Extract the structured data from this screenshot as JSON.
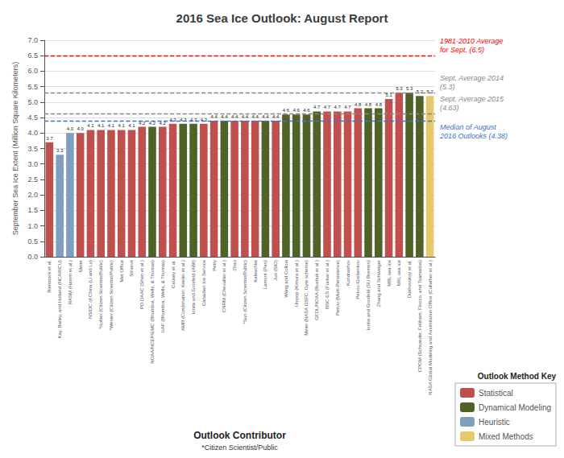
{
  "chart_data": {
    "type": "bar",
    "title": "2016 Sea Ice Outlook: August Report",
    "xlabel": "Outlook Contributor",
    "xlabel_sub": "*Citizen Scientist/Public",
    "ylabel": "September Sea Ice Extent (Million Square Kilometers)",
    "categories": [
      "Bienstock et al.",
      "Kay, Bailey, and Holland (NCAR/CU)",
      "RASM (Hamm et al.)",
      "Meier",
      "NSIDC of China (Li and Lu)",
      "*Holtier (Citizen Scientist/Public)",
      "*Wester (Citizen Scientist/Public)",
      "Met Office",
      "Stroeve",
      "PO.DAAC (Shen et al.)",
      "NOAA/NCEP/EMC (Bhumbra, Wells, & Thomas)",
      "UAF (Bhumbra, Wells, & Thomas)",
      "Causey et al.",
      "AMR (Combination: Keeler et al.)",
      "Ionita and Grosfeld (AWI)",
      "Canadian Ice Service",
      "Petty",
      "CNRM (Chevallier et al.)",
      "Zhao",
      "*Sun (Citizen Scientist/Public)",
      "Kaleschke",
      "Lamont (Pan)",
      "Jun (SIO)",
      "Wang and Collow",
      "Unipop (Kimura et al.)",
      "Meier (NASA GSFC, Gyte scheme)",
      "GFDL/NOAA (Bushuk et al.)",
      "BSC-ES (Fuckar et al.)",
      "Petrov (Multi-Persistence)",
      "Kondrashov",
      "Petrov-Grebenkov",
      "Ionita and Grosfeld (SU Bremen)",
      "Zhang and Schweiger",
      "MBL sea ice",
      "NRL sea ice",
      "Dukhovskoy et al.",
      "CPOM (Schroeder, Feltham, Flocco, and Tsamados)",
      "NASA Global Modeling and Assimilation Office (Cullather et al.)"
    ],
    "values": [
      3.7,
      3.3,
      4.0,
      4.0,
      4.1,
      4.1,
      4.1,
      4.1,
      4.1,
      4.2,
      4.2,
      4.2,
      4.3,
      4.3,
      4.3,
      4.3,
      4.4,
      4.4,
      4.4,
      4.4,
      4.4,
      4.4,
      4.4,
      4.6,
      4.6,
      4.6,
      4.7,
      4.7,
      4.7,
      4.7,
      4.8,
      4.8,
      4.8,
      5.1,
      5.3,
      5.3,
      5.2,
      5.2
    ],
    "value_labels": [
      "3.7",
      "3.3",
      "4.0",
      "4.0",
      "4.1",
      "4.1",
      "4.1",
      "4.1",
      "4.1",
      "4.2",
      "4.2",
      "4.2",
      "4.3",
      "4.3",
      "4.3",
      "4.3",
      "4.4",
      "4.4",
      "4.4",
      "4.4",
      "4.4",
      "4.4",
      "4.4",
      "4.6",
      "4.6",
      "4.6",
      "4.7",
      "4.7",
      "4.7",
      "4.7",
      "4.8",
      "4.8",
      "4.8",
      "5.1",
      "5.3",
      "5.3",
      "5.2",
      "5.2"
    ],
    "colors": [
      "#C0504D",
      "#7F9FBF",
      "#7F9FBF",
      "#C0504D",
      "#C0504D",
      "#C0504D",
      "#C0504D",
      "#C0504D",
      "#C0504D",
      "#C0504D",
      "#4F6228",
      "#C0504D",
      "#C0504D",
      "#4F6228",
      "#4F6228",
      "#C0504D",
      "#C0504D",
      "#4F6228",
      "#C0504D",
      "#C0504D",
      "#C0504D",
      "#4F6228",
      "#C0504D",
      "#4F6228",
      "#4F6228",
      "#4F6228",
      "#4F6228",
      "#C0504D",
      "#C0504D",
      "#C0504D",
      "#C0504D",
      "#4F6228",
      "#4F6228",
      "#C0504D",
      "#C0504D",
      "#4F6228",
      "#4F6228",
      "#E6C96A"
    ],
    "data_labels": true,
    "ylim": [
      0.0,
      7.0
    ],
    "yticks": [
      {
        "value": 0,
        "label": "0.0"
      },
      0.5,
      {
        "value": 1,
        "label": "1.0"
      },
      1.5,
      {
        "value": 2,
        "label": "2.0"
      },
      2.5,
      {
        "value": 3,
        "label": "3.0"
      },
      3.5,
      {
        "value": 4,
        "label": "4.0"
      },
      4.5,
      {
        "value": 5,
        "label": "5.0"
      },
      5.5,
      {
        "value": 6,
        "label": "6.0"
      },
      6.5,
      {
        "value": 7,
        "label": "7.0"
      }
    ],
    "grid": true,
    "legend": "lower right",
    "legend_title": "Outlook Method Key",
    "legend_items": [
      {
        "label": "Statistical",
        "color": "#C0504D"
      },
      {
        "label": "Dynamical Modeling",
        "color": "#4F6228"
      },
      {
        "label": "Heuristic",
        "color": "#7F9FBF"
      },
      {
        "label": "Mixed Methods",
        "color": "#E6C96A"
      }
    ],
    "ref_lines": [
      {
        "value": 6.5,
        "label": "1981-2010 Average\nfor Sept. (6.5)",
        "color": "#FF0000",
        "line_style": "dashed"
      },
      {
        "value": 5.3,
        "label": "Sept. Average 2014\n(5.3)",
        "color": "#888888",
        "line_style": "dashed"
      },
      {
        "value": 4.63,
        "label": "Sept. Average 2015\n(4.63)",
        "color": "#888888",
        "line_style": "dashed"
      },
      {
        "value": 4.38,
        "label": "Median of August\n2016 Outlooks (4.38)",
        "color": "#4472C4",
        "line_style": "dashed"
      }
    ]
  }
}
